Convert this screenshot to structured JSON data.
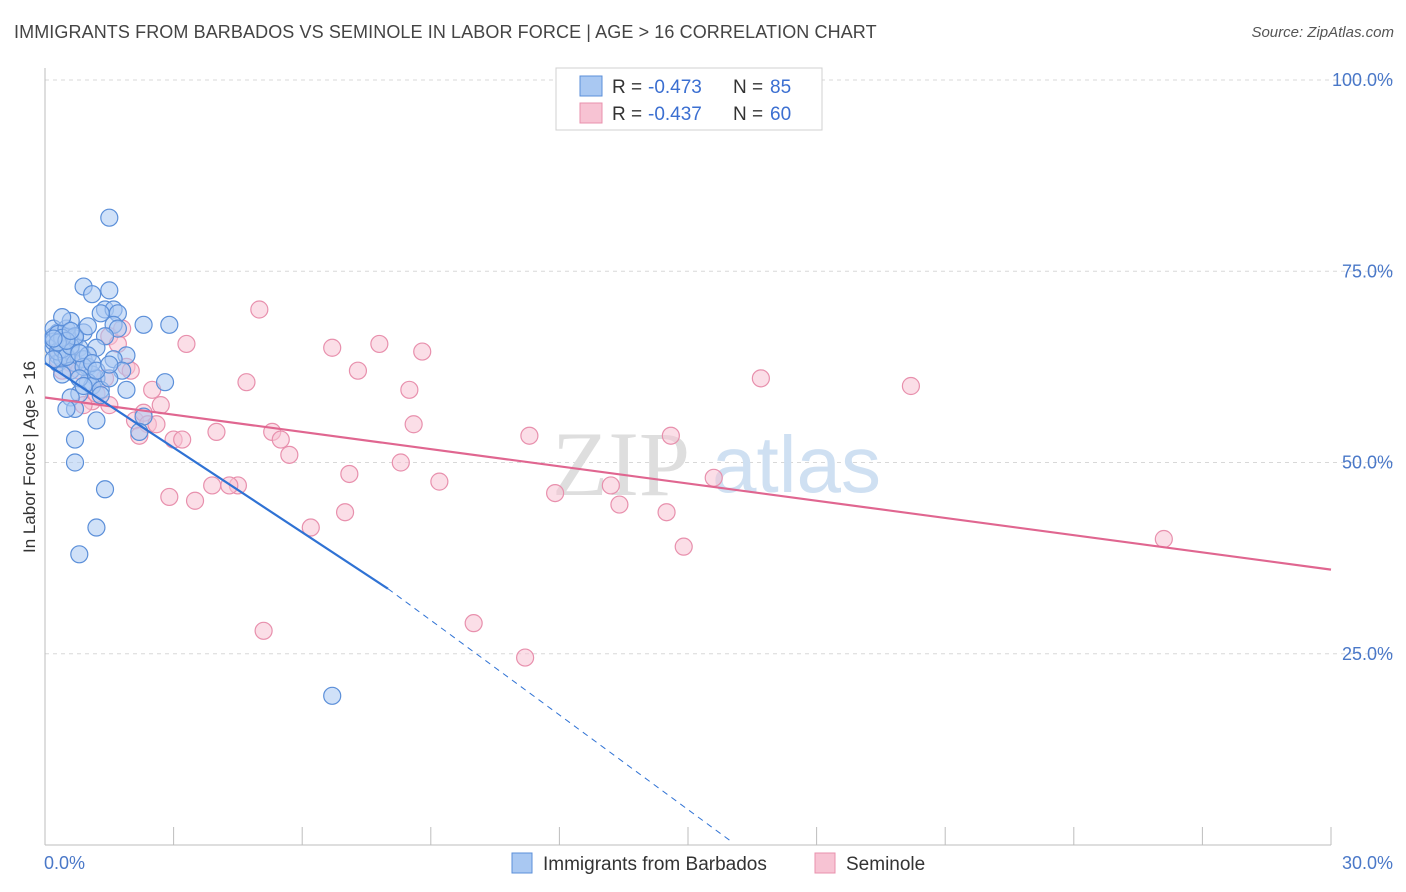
{
  "title": "IMMIGRANTS FROM BARBADOS VS SEMINOLE IN LABOR FORCE | AGE > 16 CORRELATION CHART",
  "source": "Source: ZipAtlas.com",
  "watermark": {
    "zip": "ZIP",
    "atlas": "atlas"
  },
  "colors": {
    "blue_fill": "#a9c8f2",
    "blue_stroke": "#5b8fd9",
    "blue_line": "#2f72d4",
    "pink_fill": "#f7c3d3",
    "pink_stroke": "#e890ad",
    "pink_line": "#e06690",
    "grid": "#d8d8d8",
    "tick_label": "#4a78c8"
  },
  "legend": {
    "series": [
      {
        "r_label": "R = ",
        "r_value": "-0.473",
        "n_label": "N = ",
        "n_value": "85"
      },
      {
        "r_label": "R = ",
        "r_value": "-0.437",
        "n_label": "N = ",
        "n_value": "60"
      }
    ]
  },
  "chart_data": {
    "type": "scatter",
    "title": "IMMIGRANTS FROM BARBADOS VS SEMINOLE IN LABOR FORCE | AGE > 16 CORRELATION CHART",
    "xlabel": "",
    "ylabel": "In Labor Force | Age > 16",
    "xlim": [
      0,
      30
    ],
    "ylim": [
      0,
      100
    ],
    "x_tick_labels": [
      "0.0%",
      "30.0%"
    ],
    "y_ticks": [
      25,
      50,
      75,
      100
    ],
    "y_tick_labels": [
      "25.0%",
      "50.0%",
      "75.0%",
      "100.0%"
    ],
    "grid": true,
    "legend_position": "top-center",
    "series": [
      {
        "name": "Immigrants from Barbados",
        "color": "#a9c8f2",
        "points": [
          [
            0.2,
            66.5
          ],
          [
            0.3,
            67.0
          ],
          [
            0.4,
            66.0
          ],
          [
            0.2,
            65.0
          ],
          [
            0.3,
            64.0
          ],
          [
            0.4,
            65.5
          ],
          [
            0.5,
            66.5
          ],
          [
            0.2,
            67.5
          ],
          [
            0.3,
            63.0
          ],
          [
            0.5,
            64.0
          ],
          [
            0.6,
            66.0
          ],
          [
            0.6,
            64.5
          ],
          [
            0.7,
            66.2
          ],
          [
            0.8,
            65.0
          ],
          [
            0.2,
            65.8
          ],
          [
            0.4,
            63.5
          ],
          [
            0.3,
            66.8
          ],
          [
            0.5,
            67.5
          ],
          [
            0.6,
            68.5
          ],
          [
            0.4,
            69.0
          ],
          [
            0.9,
            67.0
          ],
          [
            0.7,
            63.0
          ],
          [
            0.9,
            63.5
          ],
          [
            1.0,
            62.5
          ],
          [
            0.6,
            62.0
          ],
          [
            1.1,
            61.5
          ],
          [
            1.2,
            61.0
          ],
          [
            1.0,
            60.5
          ],
          [
            1.1,
            60.0
          ],
          [
            1.3,
            59.5
          ],
          [
            0.8,
            59.0
          ],
          [
            0.6,
            58.5
          ],
          [
            0.7,
            57.0
          ],
          [
            0.5,
            57.0
          ],
          [
            1.2,
            55.5
          ],
          [
            0.7,
            53.0
          ],
          [
            0.7,
            50.0
          ],
          [
            1.4,
            46.5
          ],
          [
            1.2,
            41.5
          ],
          [
            0.8,
            38.0
          ],
          [
            1.5,
            82.0
          ],
          [
            0.9,
            73.0
          ],
          [
            1.1,
            72.0
          ],
          [
            1.5,
            72.5
          ],
          [
            1.4,
            70.0
          ],
          [
            1.6,
            70.0
          ],
          [
            1.7,
            69.5
          ],
          [
            1.3,
            69.5
          ],
          [
            1.6,
            68.0
          ],
          [
            1.7,
            67.5
          ],
          [
            2.3,
            68.0
          ],
          [
            2.9,
            68.0
          ],
          [
            1.9,
            64.0
          ],
          [
            1.6,
            63.5
          ],
          [
            1.8,
            62.0
          ],
          [
            1.5,
            61.0
          ],
          [
            1.9,
            59.5
          ],
          [
            2.8,
            60.5
          ],
          [
            2.3,
            56.0
          ],
          [
            2.2,
            54.0
          ],
          [
            1.4,
            66.5
          ],
          [
            1.2,
            65.0
          ],
          [
            1.0,
            64.0
          ],
          [
            0.9,
            62.5
          ],
          [
            0.3,
            64.5
          ],
          [
            0.4,
            64.8
          ],
          [
            0.5,
            63.8
          ],
          [
            0.2,
            63.5
          ],
          [
            0.6,
            65.2
          ],
          [
            0.7,
            66.5
          ],
          [
            0.8,
            64.3
          ],
          [
            0.4,
            66.3
          ],
          [
            0.3,
            65.7
          ],
          [
            0.5,
            65.9
          ],
          [
            0.2,
            66.2
          ],
          [
            0.6,
            67.2
          ],
          [
            1.0,
            67.8
          ],
          [
            0.8,
            61.0
          ],
          [
            1.1,
            63.0
          ],
          [
            1.2,
            62.0
          ],
          [
            0.9,
            60.0
          ],
          [
            1.3,
            58.8
          ],
          [
            1.5,
            62.8
          ],
          [
            0.4,
            61.5
          ],
          [
            6.7,
            19.5
          ]
        ],
        "trend_solid": [
          [
            0.0,
            63.0
          ],
          [
            8.0,
            33.5
          ]
        ],
        "trend_dashed": [
          [
            8.0,
            33.5
          ],
          [
            16.0,
            0.5
          ]
        ]
      },
      {
        "name": "Seminole",
        "color": "#f7c3d3",
        "points": [
          [
            0.3,
            63.5
          ],
          [
            0.6,
            63.0
          ],
          [
            0.4,
            62.0
          ],
          [
            0.8,
            62.0
          ],
          [
            1.1,
            58.0
          ],
          [
            1.4,
            61.0
          ],
          [
            1.5,
            66.5
          ],
          [
            1.7,
            65.5
          ],
          [
            1.9,
            62.5
          ],
          [
            2.0,
            62.0
          ],
          [
            1.5,
            57.5
          ],
          [
            2.1,
            55.5
          ],
          [
            2.3,
            56.5
          ],
          [
            2.5,
            59.5
          ],
          [
            2.7,
            57.5
          ],
          [
            2.4,
            55.0
          ],
          [
            2.2,
            53.5
          ],
          [
            3.0,
            53.0
          ],
          [
            3.2,
            53.0
          ],
          [
            3.5,
            45.0
          ],
          [
            2.9,
            45.5
          ],
          [
            3.3,
            65.5
          ],
          [
            4.0,
            54.0
          ],
          [
            4.5,
            47.0
          ],
          [
            4.7,
            60.5
          ],
          [
            5.0,
            70.0
          ],
          [
            5.3,
            54.0
          ],
          [
            5.5,
            53.0
          ],
          [
            5.7,
            51.0
          ],
          [
            6.2,
            41.5
          ],
          [
            6.7,
            65.0
          ],
          [
            7.0,
            43.5
          ],
          [
            7.3,
            62.0
          ],
          [
            7.1,
            48.5
          ],
          [
            7.8,
            65.5
          ],
          [
            8.3,
            50.0
          ],
          [
            8.5,
            59.5
          ],
          [
            8.8,
            64.5
          ],
          [
            8.6,
            55.0
          ],
          [
            9.2,
            47.5
          ],
          [
            10.0,
            29.0
          ],
          [
            11.2,
            24.5
          ],
          [
            11.3,
            53.5
          ],
          [
            11.9,
            46.0
          ],
          [
            13.2,
            47.0
          ],
          [
            13.4,
            44.5
          ],
          [
            14.5,
            43.5
          ],
          [
            14.6,
            53.5
          ],
          [
            14.9,
            39.0
          ],
          [
            15.6,
            48.0
          ],
          [
            16.7,
            61.0
          ],
          [
            20.2,
            60.0
          ],
          [
            26.1,
            40.0
          ],
          [
            5.1,
            28.0
          ],
          [
            3.9,
            47.0
          ],
          [
            4.3,
            47.0
          ],
          [
            0.9,
            57.5
          ],
          [
            1.2,
            59.0
          ],
          [
            1.8,
            67.5
          ],
          [
            2.6,
            55.0
          ]
        ],
        "trend_solid": [
          [
            0.0,
            58.5
          ],
          [
            30.0,
            36.0
          ]
        ]
      }
    ]
  }
}
